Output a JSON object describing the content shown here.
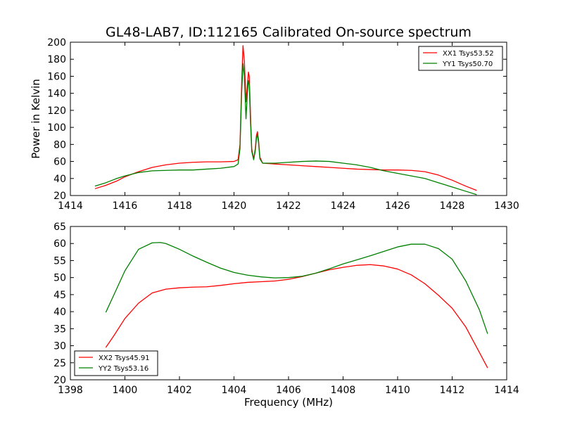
{
  "title": "GL48-LAB7, ID:112165 Calibrated On-source spectrum",
  "xlabel": "Frequency (MHz)",
  "colors": {
    "red": "#ff0000",
    "green": "#008000"
  },
  "chart_data": [
    {
      "type": "line",
      "title": "GL48-LAB7, ID:112165 Calibrated On-source spectrum",
      "xlabel": "",
      "ylabel": "Power in Kelvin",
      "xlim": [
        1414,
        1430
      ],
      "ylim": [
        20,
        200
      ],
      "xticks": [
        1414,
        1416,
        1418,
        1420,
        1422,
        1424,
        1426,
        1428,
        1430
      ],
      "yticks": [
        20,
        40,
        60,
        80,
        100,
        120,
        140,
        160,
        180,
        200
      ],
      "grid": false,
      "legend_position": "top-right",
      "series": [
        {
          "name": "XX1 Tsys53.52",
          "color": "#ff0000",
          "points": [
            [
              1414.9,
              28
            ],
            [
              1415.3,
              32
            ],
            [
              1415.7,
              37
            ],
            [
              1416.0,
              42
            ],
            [
              1416.5,
              48
            ],
            [
              1417.0,
              53
            ],
            [
              1417.5,
              56
            ],
            [
              1418.0,
              58
            ],
            [
              1418.5,
              59
            ],
            [
              1419.0,
              59.5
            ],
            [
              1419.5,
              59.5
            ],
            [
              1420.0,
              60
            ],
            [
              1420.15,
              62
            ],
            [
              1420.22,
              80
            ],
            [
              1420.28,
              150
            ],
            [
              1420.33,
              196
            ],
            [
              1420.38,
              178
            ],
            [
              1420.44,
              130
            ],
            [
              1420.49,
              150
            ],
            [
              1420.53,
              165
            ],
            [
              1420.56,
              160
            ],
            [
              1420.6,
              120
            ],
            [
              1420.65,
              75
            ],
            [
              1420.72,
              63
            ],
            [
              1420.78,
              75
            ],
            [
              1420.82,
              90
            ],
            [
              1420.86,
              95
            ],
            [
              1420.9,
              85
            ],
            [
              1420.95,
              65
            ],
            [
              1421.05,
              58
            ],
            [
              1421.5,
              57
            ],
            [
              1422.0,
              56
            ],
            [
              1422.5,
              55
            ],
            [
              1423.0,
              54
            ],
            [
              1423.5,
              53
            ],
            [
              1424.0,
              52
            ],
            [
              1424.5,
              51
            ],
            [
              1425.0,
              50.5
            ],
            [
              1425.5,
              50
            ],
            [
              1426.0,
              50
            ],
            [
              1426.5,
              49.5
            ],
            [
              1427.0,
              48
            ],
            [
              1427.5,
              44
            ],
            [
              1428.0,
              38
            ],
            [
              1428.5,
              31
            ],
            [
              1428.9,
              26
            ]
          ]
        },
        {
          "name": "YY1 Tsys50.70",
          "color": "#008000",
          "points": [
            [
              1414.9,
              31
            ],
            [
              1415.3,
              35
            ],
            [
              1415.7,
              40
            ],
            [
              1416.0,
              43
            ],
            [
              1416.5,
              47
            ],
            [
              1417.0,
              49
            ],
            [
              1417.5,
              49.5
            ],
            [
              1418.0,
              50
            ],
            [
              1418.5,
              50
            ],
            [
              1419.0,
              51
            ],
            [
              1419.5,
              52
            ],
            [
              1420.0,
              54
            ],
            [
              1420.15,
              57
            ],
            [
              1420.22,
              75
            ],
            [
              1420.28,
              140
            ],
            [
              1420.33,
              175
            ],
            [
              1420.38,
              160
            ],
            [
              1420.44,
              110
            ],
            [
              1420.49,
              140
            ],
            [
              1420.53,
              155
            ],
            [
              1420.56,
              150
            ],
            [
              1420.6,
              110
            ],
            [
              1420.65,
              72
            ],
            [
              1420.72,
              62
            ],
            [
              1420.78,
              72
            ],
            [
              1420.82,
              86
            ],
            [
              1420.86,
              92
            ],
            [
              1420.9,
              82
            ],
            [
              1420.95,
              63
            ],
            [
              1421.05,
              58
            ],
            [
              1421.5,
              58
            ],
            [
              1422.0,
              59
            ],
            [
              1422.5,
              60
            ],
            [
              1423.0,
              60.5
            ],
            [
              1423.5,
              60
            ],
            [
              1424.0,
              58
            ],
            [
              1424.5,
              56
            ],
            [
              1425.0,
              53
            ],
            [
              1425.5,
              49
            ],
            [
              1426.0,
              46
            ],
            [
              1426.5,
              43
            ],
            [
              1427.0,
              40
            ],
            [
              1427.5,
              35
            ],
            [
              1428.0,
              30
            ],
            [
              1428.5,
              25
            ],
            [
              1428.9,
              21
            ]
          ]
        }
      ]
    },
    {
      "type": "line",
      "title": "",
      "xlabel": "Frequency (MHz)",
      "ylabel": "",
      "xlim": [
        1398,
        1414
      ],
      "ylim": [
        20,
        65
      ],
      "xticks": [
        1398,
        1400,
        1402,
        1404,
        1406,
        1408,
        1410,
        1412,
        1414
      ],
      "yticks": [
        20,
        25,
        30,
        35,
        40,
        45,
        50,
        55,
        60,
        65
      ],
      "grid": false,
      "legend_position": "bottom-left",
      "series": [
        {
          "name": "XX2 Tsys45.91",
          "color": "#ff0000",
          "points": [
            [
              1399.3,
              29.5
            ],
            [
              1399.6,
              33
            ],
            [
              1400.0,
              38
            ],
            [
              1400.5,
              42.5
            ],
            [
              1401.0,
              45.5
            ],
            [
              1401.5,
              46.6
            ],
            [
              1402.0,
              47
            ],
            [
              1402.5,
              47.2
            ],
            [
              1403.0,
              47.3
            ],
            [
              1403.5,
              47.7
            ],
            [
              1404.0,
              48.2
            ],
            [
              1404.5,
              48.6
            ],
            [
              1405.0,
              48.8
            ],
            [
              1405.5,
              49
            ],
            [
              1406.0,
              49.5
            ],
            [
              1406.5,
              50.3
            ],
            [
              1407.0,
              51.3
            ],
            [
              1407.5,
              52.3
            ],
            [
              1408.0,
              53
            ],
            [
              1408.5,
              53.6
            ],
            [
              1409.0,
              53.8
            ],
            [
              1409.5,
              53.4
            ],
            [
              1410.0,
              52.5
            ],
            [
              1410.5,
              50.8
            ],
            [
              1411.0,
              48.2
            ],
            [
              1411.5,
              44.8
            ],
            [
              1412.0,
              41
            ],
            [
              1412.5,
              35.5
            ],
            [
              1413.0,
              28
            ],
            [
              1413.3,
              23.5
            ]
          ]
        },
        {
          "name": "YY2 Tsys53.16",
          "color": "#008000",
          "points": [
            [
              1399.3,
              39.8
            ],
            [
              1399.6,
              45
            ],
            [
              1400.0,
              52
            ],
            [
              1400.5,
              58.3
            ],
            [
              1401.0,
              60.2
            ],
            [
              1401.3,
              60.3
            ],
            [
              1401.5,
              60
            ],
            [
              1402.0,
              58.3
            ],
            [
              1402.5,
              56.3
            ],
            [
              1403.0,
              54.5
            ],
            [
              1403.5,
              52.8
            ],
            [
              1404.0,
              51.5
            ],
            [
              1404.5,
              50.7
            ],
            [
              1405.0,
              50.2
            ],
            [
              1405.5,
              49.9
            ],
            [
              1406.0,
              50
            ],
            [
              1406.5,
              50.4
            ],
            [
              1407.0,
              51.3
            ],
            [
              1407.5,
              52.6
            ],
            [
              1408.0,
              54
            ],
            [
              1408.5,
              55.2
            ],
            [
              1409.0,
              56.4
            ],
            [
              1409.5,
              57.7
            ],
            [
              1410.0,
              59
            ],
            [
              1410.5,
              59.8
            ],
            [
              1411.0,
              59.8
            ],
            [
              1411.5,
              58.5
            ],
            [
              1412.0,
              55.4
            ],
            [
              1412.5,
              49
            ],
            [
              1413.0,
              40.5
            ],
            [
              1413.3,
              33.5
            ]
          ]
        }
      ]
    }
  ]
}
